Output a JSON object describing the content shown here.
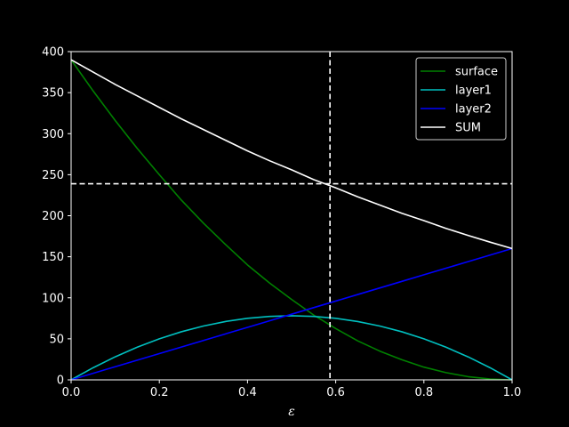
{
  "chart_data": {
    "type": "line",
    "title": "",
    "xlabel": "ε",
    "ylabel": "",
    "xlim": [
      0,
      1
    ],
    "ylim": [
      0,
      400
    ],
    "x_ticks": [
      0.0,
      0.2,
      0.4,
      0.6,
      0.8,
      1.0
    ],
    "x_tick_labels": [
      "0.0",
      "0.2",
      "0.4",
      "0.6",
      "0.8",
      "1.0"
    ],
    "y_ticks": [
      0,
      50,
      100,
      150,
      200,
      250,
      300,
      350,
      400
    ],
    "y_tick_labels": [
      "0",
      "50",
      "100",
      "150",
      "200",
      "250",
      "300",
      "350",
      "400"
    ],
    "grid": false,
    "legend_position": "top-right",
    "x": [
      0.0,
      0.05,
      0.1,
      0.15,
      0.2,
      0.25,
      0.3,
      0.35,
      0.4,
      0.45,
      0.5,
      0.55,
      0.6,
      0.65,
      0.7,
      0.75,
      0.8,
      0.85,
      0.9,
      0.95,
      1.0
    ],
    "series": [
      {
        "name": "surface",
        "color": "#008000",
        "values": [
          390.0,
          352.0,
          316.0,
          282.0,
          250.0,
          219.0,
          191.0,
          165.0,
          140.0,
          118.0,
          98.0,
          79.0,
          62.5,
          47.5,
          35.0,
          24.5,
          15.5,
          8.8,
          3.9,
          1.0,
          0.0
        ]
      },
      {
        "name": "layer1",
        "color": "#00bfbf",
        "values": [
          0.0,
          14.8,
          28.1,
          39.8,
          50.0,
          58.6,
          65.6,
          71.1,
          75.0,
          77.3,
          78.1,
          77.3,
          75.0,
          71.1,
          65.6,
          58.6,
          50.0,
          39.8,
          28.1,
          14.8,
          0.0
        ]
      },
      {
        "name": "layer2",
        "color": "#0000ff",
        "values": [
          0.0,
          8.0,
          16.0,
          24.0,
          32.0,
          40.0,
          48.0,
          56.0,
          64.0,
          72.0,
          80.0,
          88.0,
          96.0,
          104.0,
          112.0,
          120.0,
          128.0,
          136.0,
          144.0,
          152.0,
          160.0
        ]
      },
      {
        "name": "SUM",
        "color": "#ffffff",
        "values": [
          390.0,
          375.0,
          360.0,
          346.0,
          332.0,
          318.0,
          305.0,
          292.0,
          279.0,
          267.0,
          256.0,
          244.0,
          234.0,
          223.0,
          213.0,
          203.0,
          194.0,
          184.6,
          176.0,
          167.8,
          160.0
        ]
      }
    ],
    "reference_lines": [
      {
        "orientation": "horizontal",
        "value": 239,
        "color": "#ffffff",
        "style": "dashed"
      },
      {
        "orientation": "vertical",
        "value": 0.587,
        "color": "#ffffff",
        "style": "dashed"
      }
    ]
  }
}
